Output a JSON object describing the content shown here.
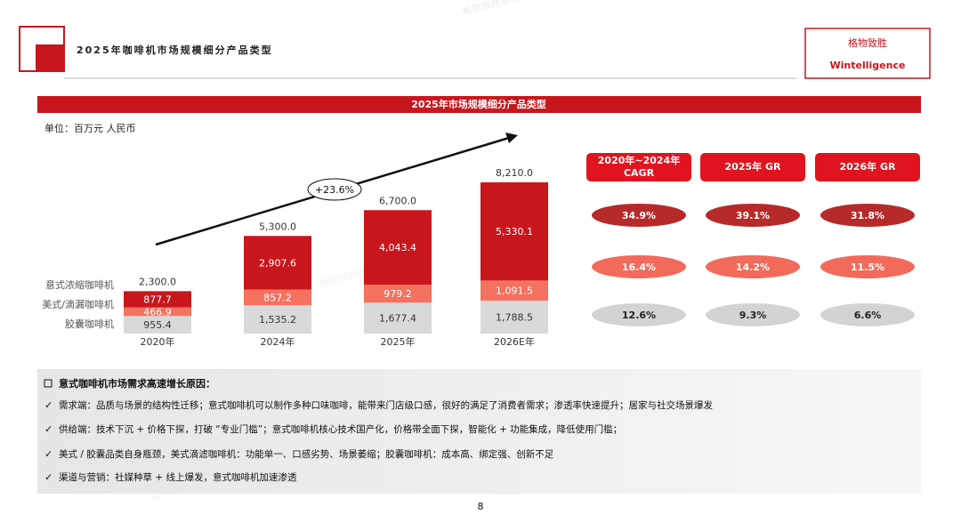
{
  "header": {
    "title": "2025年咖啡机市场规模细分产品类型",
    "logo_cn": "格物致胜",
    "logo_en": "Wintelligence",
    "watermark": "格物致胜版权所有"
  },
  "chart_data": {
    "type": "bar",
    "stacked": true,
    "title": "2025年市场规模细分产品类型",
    "unit": "单位：百万元 人民币",
    "annotation": "+23.6%",
    "categories": [
      "2020年",
      "2024年",
      "2025年",
      "2026E年"
    ],
    "series": [
      {
        "name": "胶囊咖啡机",
        "color": "#d9d9d9",
        "values": [
          955.4,
          1535.2,
          1677.4,
          1788.5
        ],
        "value_labels": [
          "955.4",
          "1,535.2",
          "1,677.4",
          "1,788.5"
        ]
      },
      {
        "name": "美式/滴漏咖啡机",
        "color": "#f4725f",
        "values": [
          466.9,
          857.2,
          979.2,
          1091.5
        ],
        "value_labels": [
          "466.9",
          "857.2",
          "979.2",
          "1,091.5"
        ]
      },
      {
        "name": "意式浓缩咖啡机",
        "color": "#c8161d",
        "values": [
          877.7,
          2907.6,
          4043.4,
          5330.1
        ],
        "value_labels": [
          "877.7",
          "2,907.6",
          "4,043.4",
          "5,330.1"
        ]
      }
    ],
    "totals": {
      "values": [
        2300.0,
        5300.0,
        6700.0,
        8210.0
      ],
      "value_labels": [
        "2,300.0",
        "5,300.0",
        "6,700.0",
        "8,210.0"
      ]
    }
  },
  "growth_table": {
    "headers": [
      "2020年~2024年 CAGR",
      "2025年 GR",
      "2026年 GR"
    ],
    "rows": [
      [
        "34.9%",
        "39.1%",
        "31.8%"
      ],
      [
        "16.4%",
        "14.2%",
        "11.5%"
      ],
      [
        "12.6%",
        "9.3%",
        "6.6%"
      ]
    ]
  },
  "notes": {
    "heading": "意式咖啡机市场需求高速增长原因：",
    "items": [
      "需求端：品质与场景的结构性迁移；意式咖啡机可以制作多种口味咖啡，能带来门店级口感，很好的满足了消费者需求；渗透率快速提升；居家与社交场景爆发",
      "供给端：技术下沉 + 价格下探，打破 “专业门槛”；意式咖啡机核心技术国产化，价格带全面下探，智能化 + 功能集成，降低使用门槛；",
      "美式 / 胶囊品类自身瓶颈，美式滴滤咖啡机：功能单一、口感劣势、场景萎缩；胶囊咖啡机：成本高、绑定强、创新不足",
      "渠道与营销：社媒种草 + 线上爆发，意式咖啡机加速渗透"
    ]
  },
  "page_number": "8"
}
